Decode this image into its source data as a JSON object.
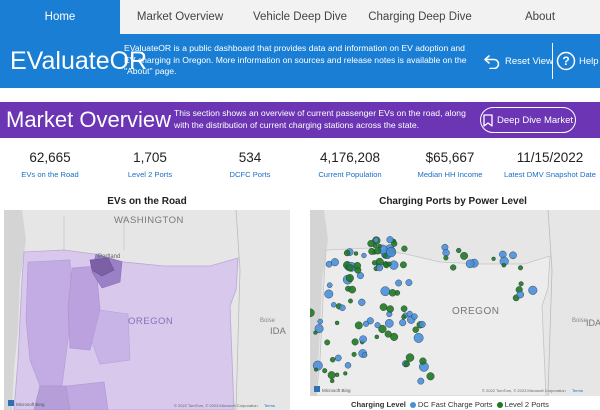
{
  "nav": {
    "tabs": [
      "Home",
      "Market Overview",
      "Vehicle Deep Dive",
      "Charging Deep Dive",
      "About"
    ],
    "active": 0
  },
  "header": {
    "title": "EValuateOR",
    "description": "EValuateOR is a public dashboard that provides data and information on EV adoption and EV charging in Oregon. More information on sources and release notes is available on the \"About\" page.",
    "reset_label": "Reset View",
    "help_label": "Help",
    "accent": "#1a7fd4"
  },
  "section": {
    "title": "Market Overview",
    "description": "This section shows an overview of current passenger EVs on the road, along with the distribution of current charging stations across the state.",
    "button_label": "Deep Dive Market",
    "accent": "#6b35b3"
  },
  "kpis": [
    {
      "value": "62,665",
      "label": "EVs on the Road"
    },
    {
      "value": "1,705",
      "label": "Level 2 Ports"
    },
    {
      "value": "534",
      "label": "DCFC Ports"
    },
    {
      "value": "4,176,208",
      "label": "Current Population"
    },
    {
      "value": "$65,667",
      "label": "Median HH Income"
    },
    {
      "value": "11/15/2022",
      "label": "Latest DMV Snapshot Date"
    }
  ],
  "maps": {
    "ev_map": {
      "title": "EVs on the Road",
      "labels": {
        "washington": "WASHINGTON",
        "oregon": "OREGON",
        "idaho": "IDA",
        "portland": "Portland",
        "boise": "Boise"
      },
      "attribution": "© 2022 TomTom, © 2023 Microsoft Corporation",
      "terms": "Terms",
      "bing": "Microsoft Bing"
    },
    "charging_map": {
      "title": "Charging Ports by Power Level",
      "labels": {
        "oregon": "OREGON",
        "idaho": "IDA",
        "boise": "Boise"
      },
      "attribution": "© 2022 TomTom, © 2023 Microsoft Corporation",
      "terms": "Terms",
      "bing": "Microsoft Bing",
      "legend_title": "Charging Level",
      "legend": [
        {
          "label": "DC Fast Charge Ports",
          "color": "#4a90d9"
        },
        {
          "label": "Level 2 Ports",
          "color": "#1f7a1f"
        }
      ]
    }
  }
}
